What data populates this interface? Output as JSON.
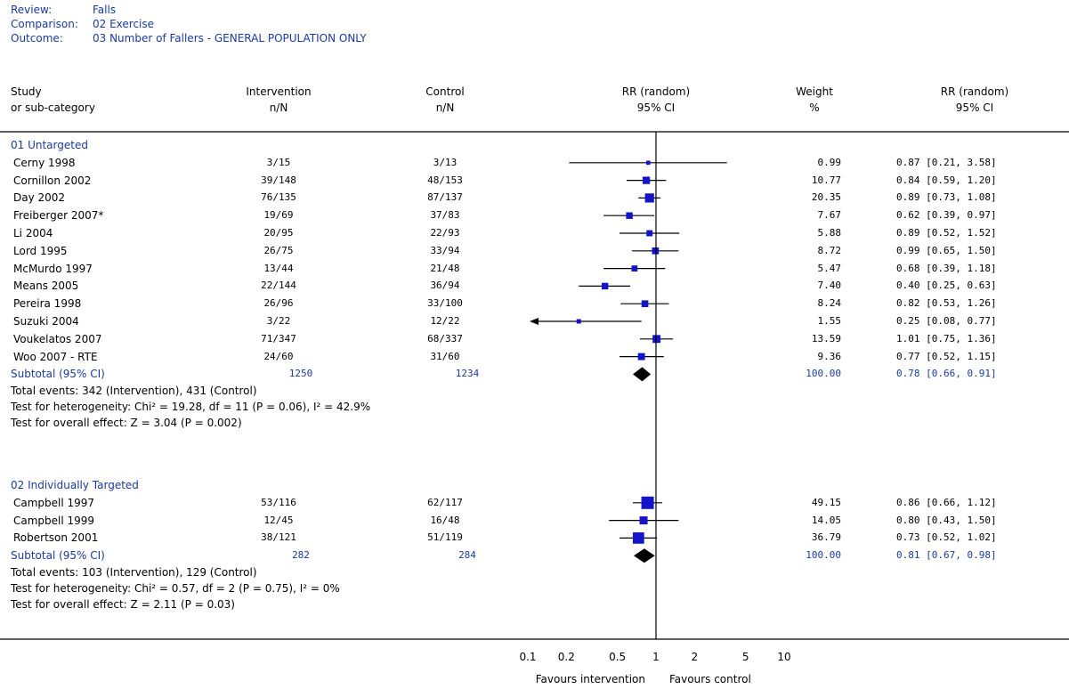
{
  "header": {
    "review_label": "Review:",
    "review_value": "Falls",
    "comparison_label": "Comparison:",
    "comparison_value": "02 Exercise",
    "outcome_label": "Outcome:",
    "outcome_value": "03 Number of Fallers - GENERAL POPULATION ONLY"
  },
  "columns": {
    "study1": "Study",
    "study2": "or sub-category",
    "intervention1": "Intervention",
    "intervention2": "n/N",
    "control1": "Control",
    "control2": "n/N",
    "rr1": "RR (random)",
    "rr2": "95% CI",
    "weight1": "Weight",
    "weight2": "%",
    "rrtext1": "RR (random)",
    "rrtext2": "95% CI"
  },
  "chart_data": {
    "type": "forest",
    "scale": "log",
    "xlim": [
      0.1,
      10
    ],
    "null_value": 1,
    "x_ticks": [
      {
        "v": 0.1,
        "label": "0.1"
      },
      {
        "v": 0.2,
        "label": "0.2"
      },
      {
        "v": 0.5,
        "label": "0.5"
      },
      {
        "v": 1,
        "label": "1"
      },
      {
        "v": 2,
        "label": "2"
      },
      {
        "v": 5,
        "label": "5"
      },
      {
        "v": 10,
        "label": "10"
      }
    ],
    "favours_left": "Favours intervention",
    "favours_right": "Favours control",
    "groups": [
      {
        "name": "01 Untargeted",
        "studies": [
          {
            "name": "Cerny 1998",
            "intervention": "3/15",
            "control": "3/13",
            "rr": 0.87,
            "lo": 0.21,
            "hi": 3.58,
            "weight": "0.99",
            "ci_text": "0.87 [0.21, 3.58]"
          },
          {
            "name": "Cornillon 2002",
            "intervention": "39/148",
            "control": "48/153",
            "rr": 0.84,
            "lo": 0.59,
            "hi": 1.2,
            "weight": "10.77",
            "ci_text": "0.84 [0.59, 1.20]"
          },
          {
            "name": "Day 2002",
            "intervention": "76/135",
            "control": "87/137",
            "rr": 0.89,
            "lo": 0.73,
            "hi": 1.08,
            "weight": "20.35",
            "ci_text": "0.89 [0.73, 1.08]"
          },
          {
            "name": "Freiberger 2007*",
            "intervention": "19/69",
            "control": "37/83",
            "rr": 0.62,
            "lo": 0.39,
            "hi": 0.97,
            "weight": "7.67",
            "ci_text": "0.62 [0.39, 0.97]"
          },
          {
            "name": "Li 2004",
            "intervention": "20/95",
            "control": "22/93",
            "rr": 0.89,
            "lo": 0.52,
            "hi": 1.52,
            "weight": "5.88",
            "ci_text": "0.89 [0.52, 1.52]"
          },
          {
            "name": "Lord 1995",
            "intervention": "26/75",
            "control": "33/94",
            "rr": 0.99,
            "lo": 0.65,
            "hi": 1.5,
            "weight": "8.72",
            "ci_text": "0.99 [0.65, 1.50]"
          },
          {
            "name": "McMurdo 1997",
            "intervention": "13/44",
            "control": "21/48",
            "rr": 0.68,
            "lo": 0.39,
            "hi": 1.18,
            "weight": "5.47",
            "ci_text": "0.68 [0.39, 1.18]"
          },
          {
            "name": "Means 2005",
            "intervention": "22/144",
            "control": "36/94",
            "rr": 0.4,
            "lo": 0.25,
            "hi": 0.63,
            "weight": "7.40",
            "ci_text": "0.40 [0.25, 0.63]"
          },
          {
            "name": "Pereira 1998",
            "intervention": "26/96",
            "control": "33/100",
            "rr": 0.82,
            "lo": 0.53,
            "hi": 1.26,
            "weight": "8.24",
            "ci_text": "0.82 [0.53, 1.26]"
          },
          {
            "name": "Suzuki 2004",
            "intervention": "3/22",
            "control": "12/22",
            "rr": 0.25,
            "lo": 0.08,
            "hi": 0.77,
            "weight": "1.55",
            "ci_text": "0.25 [0.08, 0.77]"
          },
          {
            "name": "Voukelatos 2007",
            "intervention": "71/347",
            "control": "68/337",
            "rr": 1.01,
            "lo": 0.75,
            "hi": 1.36,
            "weight": "13.59",
            "ci_text": "1.01 [0.75, 1.36]"
          },
          {
            "name": "Woo 2007 - RTE",
            "intervention": "24/60",
            "control": "31/60",
            "rr": 0.77,
            "lo": 0.52,
            "hi": 1.15,
            "weight": "9.36",
            "ci_text": "0.77 [0.52, 1.15]"
          }
        ],
        "subtotal": {
          "name": "Subtotal (95% CI)",
          "intervention": "1250",
          "control": "1234",
          "rr": 0.78,
          "lo": 0.66,
          "hi": 0.91,
          "weight": "100.00",
          "ci_text": "0.78 [0.66, 0.91]"
        },
        "notes": [
          "Total events: 342 (Intervention), 431 (Control)",
          "Test for heterogeneity: Chi² = 19.28, df = 11 (P = 0.06), I² = 42.9%",
          "Test for overall effect: Z = 3.04 (P = 0.002)"
        ]
      },
      {
        "name": "02 Individually Targeted",
        "studies": [
          {
            "name": "Campbell 1997",
            "intervention": "53/116",
            "control": "62/117",
            "rr": 0.86,
            "lo": 0.66,
            "hi": 1.12,
            "weight": "49.15",
            "ci_text": "0.86 [0.66, 1.12]"
          },
          {
            "name": "Campbell 1999",
            "intervention": "12/45",
            "control": "16/48",
            "rr": 0.8,
            "lo": 0.43,
            "hi": 1.5,
            "weight": "14.05",
            "ci_text": "0.80 [0.43, 1.50]"
          },
          {
            "name": "Robertson 2001",
            "intervention": "38/121",
            "control": "51/119",
            "rr": 0.73,
            "lo": 0.52,
            "hi": 1.02,
            "weight": "36.79",
            "ci_text": "0.73 [0.52, 1.02]"
          }
        ],
        "subtotal": {
          "name": "Subtotal (95% CI)",
          "intervention": "282",
          "control": "284",
          "rr": 0.81,
          "lo": 0.67,
          "hi": 0.98,
          "weight": "100.00",
          "ci_text": "0.81 [0.67, 0.98]"
        },
        "notes": [
          "Total events: 103 (Intervention), 129 (Control)",
          "Test for heterogeneity: Chi² = 0.57, df = 2 (P = 0.75), I² = 0%",
          "Test for overall effect: Z = 2.11 (P = 0.03)"
        ]
      }
    ]
  },
  "colors": {
    "label_blue": "#1a3a9e",
    "square_blue": "#1414c8",
    "ink": "#000000"
  }
}
